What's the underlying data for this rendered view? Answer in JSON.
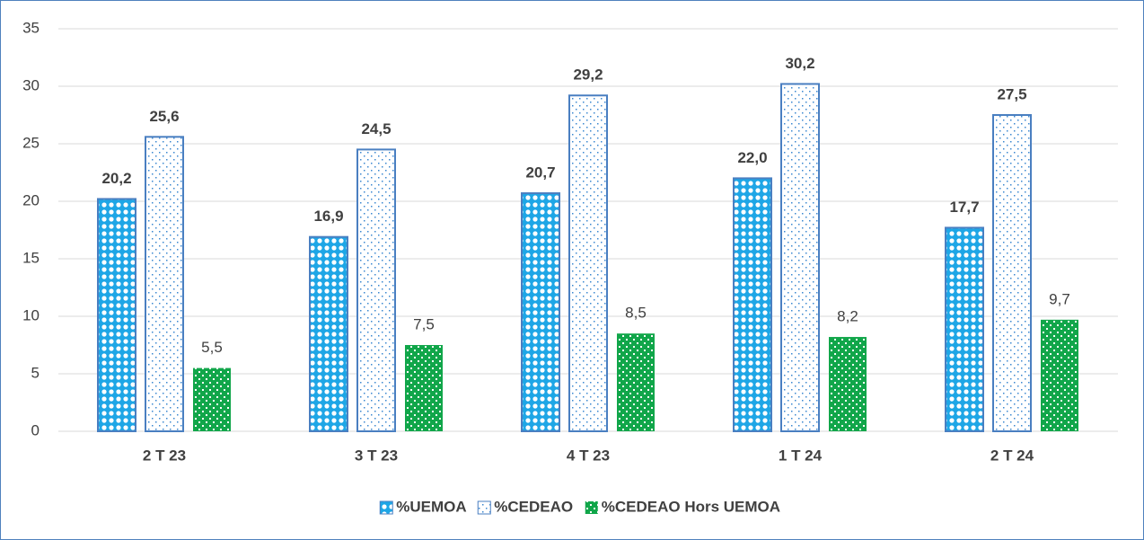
{
  "chart_data": {
    "type": "bar",
    "categories": [
      "2 T 23",
      "3 T 23",
      "4 T 23",
      "1 T 24",
      "2 T 24"
    ],
    "series": [
      {
        "name": "%UEMOA",
        "color": "#1ea6e6",
        "values": [
          20.2,
          16.9,
          20.7,
          22.0,
          17.7
        ],
        "value_labels": [
          "20,2",
          "16,9",
          "20,7",
          "22,0",
          "17,7"
        ]
      },
      {
        "name": "%CEDEAO",
        "color": "#3c88d0",
        "values": [
          25.6,
          24.5,
          29.2,
          30.2,
          27.5
        ],
        "value_labels": [
          "25,6",
          "24,5",
          "29,2",
          "30,2",
          "27,5"
        ]
      },
      {
        "name": "%CEDEAO Hors UEMOA",
        "color": "#11a64a",
        "values": [
          5.5,
          7.5,
          8.5,
          8.2,
          9.7
        ],
        "value_labels": [
          "5,5",
          "7,5",
          "8,5",
          "8,2",
          "9,7"
        ]
      }
    ],
    "ylim": [
      0,
      35
    ],
    "yticks": [
      0,
      5,
      10,
      15,
      20,
      25,
      30,
      35
    ],
    "grid": true,
    "legend": "bottom"
  }
}
